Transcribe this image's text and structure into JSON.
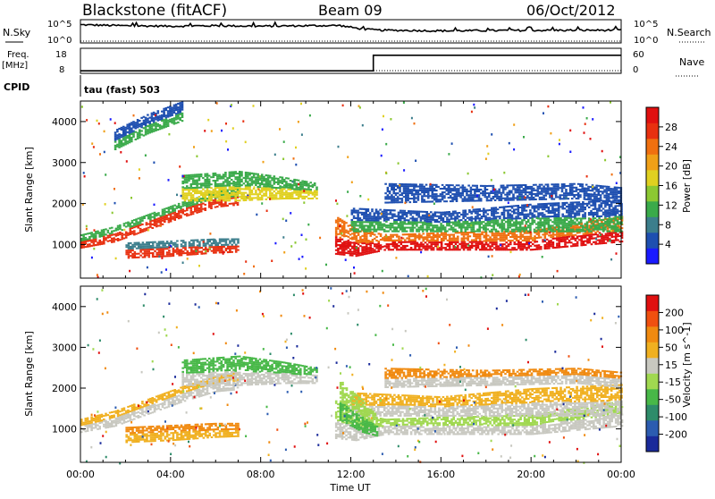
{
  "header": {
    "station": "Blackstone (fitACF)",
    "beam": "Beam 09",
    "date": "06/Oct/2012"
  },
  "top_panels": {
    "nsky_label": "N.Sky",
    "nsky_ticks": [
      "10^5",
      "10^0"
    ],
    "nsearch_label": "N.Search",
    "nsearch_ticks": [
      "10^5",
      "10^0"
    ],
    "freq_label": "Freq.",
    "freq_unit": "[MHz]",
    "freq_ticks": [
      "18",
      "8"
    ],
    "nave_label": "Nave",
    "nave_ticks": [
      "60",
      "0"
    ],
    "cpid_label": "CPID",
    "cpid_text": "tau (fast) 503"
  },
  "time_axis": {
    "label": "Time UT",
    "ticks": [
      "00:00",
      "04:00",
      "08:00",
      "12:00",
      "16:00",
      "20:00",
      "00:00"
    ],
    "range_hours": [
      0,
      24
    ]
  },
  "chart_data": [
    {
      "type": "heatmap",
      "panel": "power",
      "ylabel": "Slant Range [km]",
      "yticks": [
        "1000",
        "2000",
        "3000",
        "4000"
      ],
      "ylim": [
        180,
        4500
      ],
      "colorbar_label": "Power [dB]",
      "colorbar_ticks": [
        "4",
        "8",
        "12",
        "16",
        "20",
        "24",
        "28"
      ],
      "colorbar_range": [
        0,
        32
      ],
      "colorbar_colors": [
        "#1a1aff",
        "#1e4fb0",
        "#3c7e8c",
        "#3aaa4a",
        "#8cc832",
        "#e0d020",
        "#f0a018",
        "#f07010",
        "#e83010",
        "#e01010"
      ],
      "bands": [
        {
          "t": [
            0.0,
            1.5,
            3.0,
            4.5,
            6.0,
            7.0
          ],
          "r_lo": [
            900,
            1050,
            1350,
            1650,
            1900,
            1950
          ],
          "r_hi": [
            1250,
            1450,
            1750,
            2050,
            2300,
            2400
          ],
          "core": "#e83010",
          "fringe": "#3aaa4a"
        },
        {
          "t": [
            2.0,
            4.0,
            6.0,
            7.0
          ],
          "r_lo": [
            650,
            700,
            780,
            800
          ],
          "r_hi": [
            1050,
            1100,
            1150,
            1150
          ],
          "core": "#e83010",
          "fringe": "#3c7e8c"
        },
        {
          "t": [
            4.5,
            7.0,
            9.0,
            10.5
          ],
          "r_lo": [
            2050,
            2050,
            2100,
            2100
          ],
          "r_hi": [
            2700,
            2800,
            2650,
            2500
          ],
          "core": "#e0d020",
          "fringe": "#3aaa4a"
        },
        {
          "t": [
            11.3,
            12.2,
            13.5,
            16.0,
            20.0,
            24.0
          ],
          "r_lo": [
            750,
            700,
            850,
            850,
            850,
            1050
          ],
          "r_hi": [
            1700,
            1400,
            1250,
            1300,
            1350,
            1700
          ],
          "core": "#e01010",
          "fringe": "#f07010"
        },
        {
          "t": [
            12.0,
            16.0,
            20.0,
            24.0
          ],
          "r_lo": [
            1300,
            1300,
            1300,
            1300
          ],
          "r_hi": [
            1900,
            1800,
            2000,
            2100
          ],
          "core": "#3aaa4a",
          "fringe": "#1e4fb0"
        },
        {
          "t": [
            13.5,
            18.0,
            22.0,
            24.0
          ],
          "r_lo": [
            2000,
            2050,
            2100,
            2000
          ],
          "r_hi": [
            2500,
            2450,
            2500,
            2400
          ],
          "core": "#1e4fb0",
          "fringe": "#1e4fb0"
        },
        {
          "t": [
            1.5,
            3.0,
            4.5
          ],
          "r_lo": [
            3300,
            3700,
            4000
          ],
          "r_hi": [
            3800,
            4200,
            4500
          ],
          "core": "#3aaa4a",
          "fringe": "#1e4fb0"
        }
      ]
    },
    {
      "type": "heatmap",
      "panel": "velocity",
      "ylabel": "Slant Range [km]",
      "yticks": [
        "1000",
        "2000",
        "3000",
        "4000"
      ],
      "ylim": [
        180,
        4500
      ],
      "colorbar_label": "Velocity [m s^-1]",
      "colorbar_ticks": [
        "200",
        "100",
        "50",
        "15",
        "-15",
        "-50",
        "-100",
        "-200"
      ],
      "colorbar_range": [
        -250,
        250
      ],
      "colorbar_colors": [
        "#1a2a9a",
        "#2c5cb0",
        "#2e8c6a",
        "#48b848",
        "#a0d850",
        "#c8c8c0",
        "#f0b020",
        "#f08a10",
        "#f05010",
        "#e01010"
      ],
      "bands": [
        {
          "t": [
            0.0,
            1.5,
            3.0,
            4.5,
            6.0,
            7.0
          ],
          "r_lo": [
            900,
            1050,
            1350,
            1650,
            1900,
            1950
          ],
          "r_hi": [
            1250,
            1450,
            1750,
            2050,
            2300,
            2400
          ],
          "core": "#c8c8c0",
          "fringe": "#f0b020"
        },
        {
          "t": [
            2.0,
            4.0,
            6.0,
            7.0
          ],
          "r_lo": [
            650,
            700,
            780,
            800
          ],
          "r_hi": [
            1050,
            1100,
            1150,
            1150
          ],
          "core": "#f0b020",
          "fringe": "#f08a10"
        },
        {
          "t": [
            4.5,
            7.0,
            9.0,
            10.5
          ],
          "r_lo": [
            2050,
            2050,
            2100,
            2100
          ],
          "r_hi": [
            2700,
            2800,
            2650,
            2500
          ],
          "core": "#c8c8c0",
          "fringe": "#48b848"
        },
        {
          "t": [
            11.3,
            12.2,
            13.5,
            16.0,
            20.0,
            24.0
          ],
          "r_lo": [
            750,
            700,
            850,
            850,
            850,
            1050
          ],
          "r_hi": [
            1700,
            1400,
            1250,
            1300,
            1350,
            1700
          ],
          "core": "#c8c8c0",
          "fringe": "#a0d850"
        },
        {
          "t": [
            12.0,
            16.0,
            20.0,
            24.0
          ],
          "r_lo": [
            1300,
            1300,
            1300,
            1300
          ],
          "r_hi": [
            1900,
            1800,
            2000,
            2100
          ],
          "core": "#c8c8c0",
          "fringe": "#f0b020"
        },
        {
          "t": [
            11.5,
            12.5,
            13.2
          ],
          "r_lo": [
            1200,
            900,
            800
          ],
          "r_hi": [
            2200,
            1700,
            1300
          ],
          "core": "#48b848",
          "fringe": "#a0d850"
        },
        {
          "t": [
            13.5,
            18.0,
            22.0,
            24.0
          ],
          "r_lo": [
            2000,
            2050,
            2100,
            2000
          ],
          "r_hi": [
            2500,
            2450,
            2500,
            2400
          ],
          "core": "#c8c8c0",
          "fringe": "#f08a10"
        }
      ]
    }
  ],
  "nsky_series": {
    "t": [
      0,
      2,
      4,
      6,
      8,
      10,
      11.5,
      12.5,
      13.2,
      16,
      20,
      24
    ],
    "level": [
      0.78,
      0.74,
      0.72,
      0.74,
      0.72,
      0.74,
      0.75,
      0.6,
      0.55,
      0.52,
      0.54,
      0.55
    ]
  },
  "freq_series": {
    "t": [
      0,
      13.0,
      13.0,
      24
    ],
    "level": [
      0.1,
      0.1,
      0.72,
      0.72
    ]
  }
}
